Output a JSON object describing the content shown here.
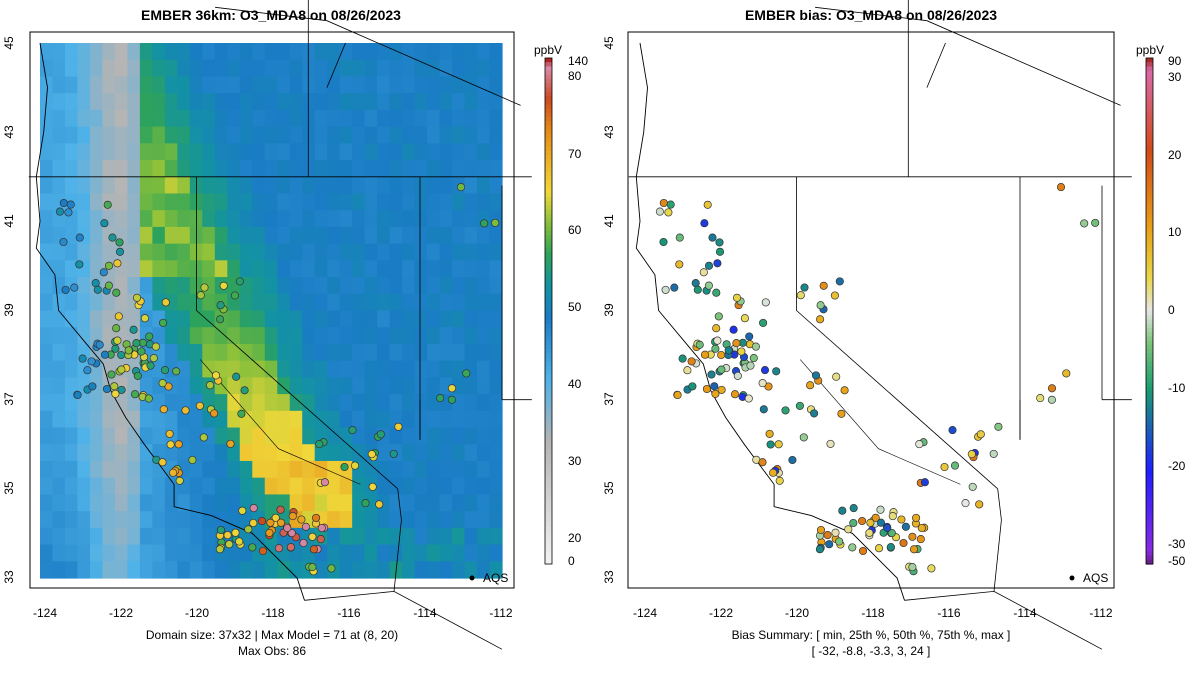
{
  "left": {
    "title": "EMBER 36km: O3_MDA8 on 08/26/2023",
    "colorbar_unit": "ppbV",
    "colorbar_labels": [
      "140",
      "80",
      "70",
      "60",
      "50",
      "40",
      "30",
      "20",
      "0"
    ],
    "caption_line1": "Domain size: 37x32 | Max Model = 71 at (8, 20)",
    "caption_line2": "Max Obs: 86",
    "network_label": "AQS"
  },
  "right": {
    "title": "EMBER bias: O3_MDA8 on 08/26/2023",
    "colorbar_unit": "ppbV",
    "colorbar_labels": [
      "90",
      "30",
      "20",
      "10",
      "0",
      "-10",
      "-20",
      "-30",
      "-50"
    ],
    "caption_line1": "Bias Summary: [ min, 25th %, 50th %, 75th %, max ]",
    "caption_line2": "[ -32,   -8.8,   -3.3,   3,   24 ]",
    "network_label": "AQS"
  },
  "axes": {
    "x_ticks": [
      "-124",
      "-122",
      "-120",
      "-118",
      "-116",
      "-114",
      "-112"
    ],
    "y_ticks": [
      "33",
      "35",
      "37",
      "39",
      "41",
      "43",
      "45"
    ]
  },
  "chart_data": [
    {
      "type": "heatmap",
      "title": "EMBER 36km: O3_MDA8 on 08/26/2023",
      "variable": "O3_MDA8",
      "units": "ppbV",
      "xlim": [
        -124,
        -112
      ],
      "ylim": [
        33,
        45
      ],
      "colorbar_range": [
        0,
        140
      ],
      "domain_size": "37x32",
      "max_model": 71,
      "max_model_cell": [
        8,
        20
      ],
      "max_obs": 86,
      "network": "AQS"
    },
    {
      "type": "scatter",
      "title": "EMBER bias: O3_MDA8 on 08/26/2023",
      "variable": "O3_MDA8 bias",
      "units": "ppbV",
      "xlim": [
        -124,
        -112
      ],
      "ylim": [
        33,
        45
      ],
      "colorbar_range": [
        -50,
        90
      ],
      "bias_summary": {
        "min": -32,
        "p25": -8.8,
        "p50": -3.3,
        "p75": 3,
        "max": 24
      },
      "network": "AQS"
    }
  ]
}
